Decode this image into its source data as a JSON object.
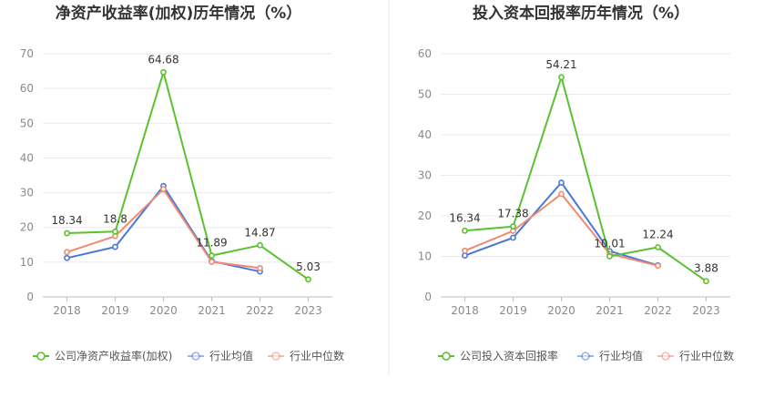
{
  "series_colors": {
    "company": "#5ac12f",
    "avg": "#4a78da",
    "median": "#f0896d"
  },
  "chart_data": [
    {
      "type": "line",
      "title": "净资产收益率(加权)历年情况（%）",
      "categories": [
        "2018",
        "2019",
        "2020",
        "2021",
        "2022",
        "2023"
      ],
      "ylim": [
        0,
        70
      ],
      "yticks": [
        0,
        10,
        20,
        30,
        40,
        50,
        60,
        70
      ],
      "grid": true,
      "legend_position": "bottom",
      "series": [
        {
          "name": "公司净资产收益率(加权)",
          "key": "company",
          "values": [
            18.34,
            18.8,
            64.68,
            11.89,
            14.87,
            5.03
          ],
          "labels": [
            "18.34",
            "18.8",
            "64.68",
            "11.89",
            "14.87",
            "5.03"
          ]
        },
        {
          "name": "行业均值",
          "key": "avg",
          "values": [
            11.2,
            14.4,
            31.9,
            10.3,
            7.3,
            null
          ]
        },
        {
          "name": "行业中位数",
          "key": "median",
          "values": [
            12.9,
            17.5,
            31.0,
            10.1,
            8.3,
            null
          ]
        }
      ]
    },
    {
      "type": "line",
      "title": "投入资本回报率历年情况（%）",
      "categories": [
        "2018",
        "2019",
        "2020",
        "2021",
        "2022",
        "2023"
      ],
      "ylim": [
        0,
        60
      ],
      "yticks": [
        0,
        10,
        20,
        30,
        40,
        50,
        60
      ],
      "grid": true,
      "legend_position": "bottom",
      "series": [
        {
          "name": "公司投入资本回报率",
          "key": "company",
          "values": [
            16.34,
            17.38,
            54.21,
            10.01,
            12.24,
            3.88
          ],
          "labels": [
            "16.34",
            "17.38",
            "54.21",
            "10.01",
            "12.24",
            "3.88"
          ]
        },
        {
          "name": "行业均值",
          "key": "avg",
          "values": [
            10.2,
            14.6,
            28.2,
            11.3,
            7.8,
            null
          ]
        },
        {
          "name": "行业中位数",
          "key": "median",
          "values": [
            11.4,
            16.3,
            25.4,
            10.6,
            7.7,
            null
          ]
        }
      ]
    }
  ]
}
